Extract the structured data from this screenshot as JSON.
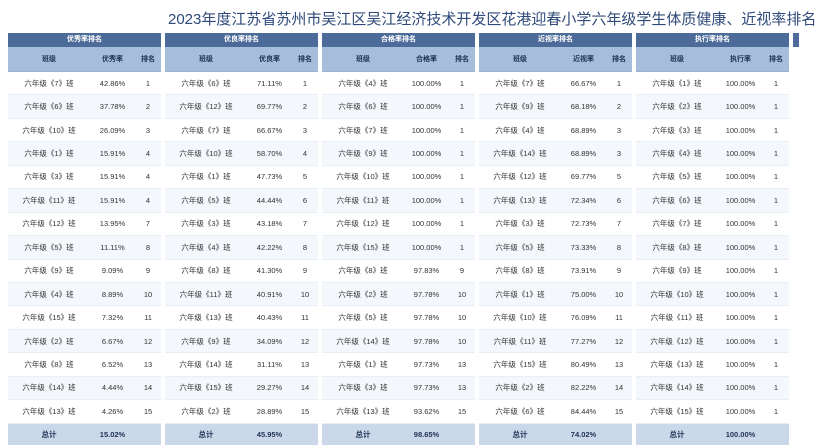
{
  "title": "2023年度江苏省苏州市吴江区吴江经济技术开发区花港迎春小学六年级学生体质健康、近视率排名",
  "col_class": "班级",
  "col_rank": "排名",
  "total_label": "总计",
  "panels": [
    {
      "name": "优秀率排名",
      "metric": "优秀率",
      "total": "15.02%",
      "rows": [
        {
          "cls": "六年级《7》班",
          "val": "42.86%",
          "rank": "1"
        },
        {
          "cls": "六年级《6》班",
          "val": "37.78%",
          "rank": "2"
        },
        {
          "cls": "六年级《10》班",
          "val": "26.09%",
          "rank": "3"
        },
        {
          "cls": "六年级《1》班",
          "val": "15.91%",
          "rank": "4"
        },
        {
          "cls": "六年级《3》班",
          "val": "15.91%",
          "rank": "4"
        },
        {
          "cls": "六年级《11》班",
          "val": "15.91%",
          "rank": "4"
        },
        {
          "cls": "六年级《12》班",
          "val": "13.95%",
          "rank": "7"
        },
        {
          "cls": "六年级《5》班",
          "val": "11.11%",
          "rank": "8"
        },
        {
          "cls": "六年级《9》班",
          "val": "9.09%",
          "rank": "9"
        },
        {
          "cls": "六年级《4》班",
          "val": "8.89%",
          "rank": "10"
        },
        {
          "cls": "六年级《15》班",
          "val": "7.32%",
          "rank": "11"
        },
        {
          "cls": "六年级《2》班",
          "val": "6.67%",
          "rank": "12"
        },
        {
          "cls": "六年级《8》班",
          "val": "6.52%",
          "rank": "13"
        },
        {
          "cls": "六年级《14》班",
          "val": "4.44%",
          "rank": "14"
        },
        {
          "cls": "六年级《13》班",
          "val": "4.26%",
          "rank": "15"
        }
      ]
    },
    {
      "name": "优良率排名",
      "metric": "优良率",
      "total": "45.95%",
      "rows": [
        {
          "cls": "六年级《6》班",
          "val": "71.11%",
          "rank": "1"
        },
        {
          "cls": "六年级《12》班",
          "val": "69.77%",
          "rank": "2"
        },
        {
          "cls": "六年级《7》班",
          "val": "66.67%",
          "rank": "3"
        },
        {
          "cls": "六年级《10》班",
          "val": "58.70%",
          "rank": "4"
        },
        {
          "cls": "六年级《1》班",
          "val": "47.73%",
          "rank": "5"
        },
        {
          "cls": "六年级《5》班",
          "val": "44.44%",
          "rank": "6"
        },
        {
          "cls": "六年级《3》班",
          "val": "43.18%",
          "rank": "7"
        },
        {
          "cls": "六年级《4》班",
          "val": "42.22%",
          "rank": "8"
        },
        {
          "cls": "六年级《8》班",
          "val": "41.30%",
          "rank": "9"
        },
        {
          "cls": "六年级《11》班",
          "val": "40.91%",
          "rank": "10"
        },
        {
          "cls": "六年级《13》班",
          "val": "40.43%",
          "rank": "11"
        },
        {
          "cls": "六年级《9》班",
          "val": "34.09%",
          "rank": "12"
        },
        {
          "cls": "六年级《14》班",
          "val": "31.11%",
          "rank": "13"
        },
        {
          "cls": "六年级《15》班",
          "val": "29.27%",
          "rank": "14"
        },
        {
          "cls": "六年级《2》班",
          "val": "28.89%",
          "rank": "15"
        }
      ]
    },
    {
      "name": "合格率排名",
      "metric": "合格率",
      "total": "98.65%",
      "rows": [
        {
          "cls": "六年级《4》班",
          "val": "100.00%",
          "rank": "1"
        },
        {
          "cls": "六年级《6》班",
          "val": "100.00%",
          "rank": "1"
        },
        {
          "cls": "六年级《7》班",
          "val": "100.00%",
          "rank": "1"
        },
        {
          "cls": "六年级《9》班",
          "val": "100.00%",
          "rank": "1"
        },
        {
          "cls": "六年级《10》班",
          "val": "100.00%",
          "rank": "1"
        },
        {
          "cls": "六年级《11》班",
          "val": "100.00%",
          "rank": "1"
        },
        {
          "cls": "六年级《12》班",
          "val": "100.00%",
          "rank": "1"
        },
        {
          "cls": "六年级《15》班",
          "val": "100.00%",
          "rank": "1"
        },
        {
          "cls": "六年级《8》班",
          "val": "97.83%",
          "rank": "9"
        },
        {
          "cls": "六年级《2》班",
          "val": "97.78%",
          "rank": "10"
        },
        {
          "cls": "六年级《5》班",
          "val": "97.78%",
          "rank": "10"
        },
        {
          "cls": "六年级《14》班",
          "val": "97.78%",
          "rank": "10"
        },
        {
          "cls": "六年级《1》班",
          "val": "97.73%",
          "rank": "13"
        },
        {
          "cls": "六年级《3》班",
          "val": "97.73%",
          "rank": "13"
        },
        {
          "cls": "六年级《13》班",
          "val": "93.62%",
          "rank": "15"
        }
      ]
    },
    {
      "name": "近视率排名",
      "metric": "近视率",
      "total": "74.02%",
      "rows": [
        {
          "cls": "六年级《7》班",
          "val": "66.67%",
          "rank": "1"
        },
        {
          "cls": "六年级《9》班",
          "val": "68.18%",
          "rank": "2"
        },
        {
          "cls": "六年级《4》班",
          "val": "68.89%",
          "rank": "3"
        },
        {
          "cls": "六年级《14》班",
          "val": "68.89%",
          "rank": "3"
        },
        {
          "cls": "六年级《12》班",
          "val": "69.77%",
          "rank": "5"
        },
        {
          "cls": "六年级《13》班",
          "val": "72.34%",
          "rank": "6"
        },
        {
          "cls": "六年级《3》班",
          "val": "72.73%",
          "rank": "7"
        },
        {
          "cls": "六年级《5》班",
          "val": "73.33%",
          "rank": "8"
        },
        {
          "cls": "六年级《8》班",
          "val": "73.91%",
          "rank": "9"
        },
        {
          "cls": "六年级《1》班",
          "val": "75.00%",
          "rank": "10"
        },
        {
          "cls": "六年级《10》班",
          "val": "76.09%",
          "rank": "11"
        },
        {
          "cls": "六年级《11》班",
          "val": "77.27%",
          "rank": "12"
        },
        {
          "cls": "六年级《15》班",
          "val": "80.49%",
          "rank": "13"
        },
        {
          "cls": "六年级《2》班",
          "val": "82.22%",
          "rank": "14"
        },
        {
          "cls": "六年级《6》班",
          "val": "84.44%",
          "rank": "15"
        }
      ]
    },
    {
      "name": "执行率排名",
      "metric": "执行率",
      "total": "100.00%",
      "rows": [
        {
          "cls": "六年级《1》班",
          "val": "100.00%",
          "rank": "1"
        },
        {
          "cls": "六年级《2》班",
          "val": "100.00%",
          "rank": "1"
        },
        {
          "cls": "六年级《3》班",
          "val": "100.00%",
          "rank": "1"
        },
        {
          "cls": "六年级《4》班",
          "val": "100.00%",
          "rank": "1"
        },
        {
          "cls": "六年级《5》班",
          "val": "100.00%",
          "rank": "1"
        },
        {
          "cls": "六年级《6》班",
          "val": "100.00%",
          "rank": "1"
        },
        {
          "cls": "六年级《7》班",
          "val": "100.00%",
          "rank": "1"
        },
        {
          "cls": "六年级《8》班",
          "val": "100.00%",
          "rank": "1"
        },
        {
          "cls": "六年级《9》班",
          "val": "100.00%",
          "rank": "1"
        },
        {
          "cls": "六年级《10》班",
          "val": "100.00%",
          "rank": "1"
        },
        {
          "cls": "六年级《11》班",
          "val": "100.00%",
          "rank": "1"
        },
        {
          "cls": "六年级《12》班",
          "val": "100.00%",
          "rank": "1"
        },
        {
          "cls": "六年级《13》班",
          "val": "100.00%",
          "rank": "1"
        },
        {
          "cls": "六年级《14》班",
          "val": "100.00%",
          "rank": "1"
        },
        {
          "cls": "六年级《15》班",
          "val": "100.00%",
          "rank": "1"
        }
      ]
    }
  ]
}
